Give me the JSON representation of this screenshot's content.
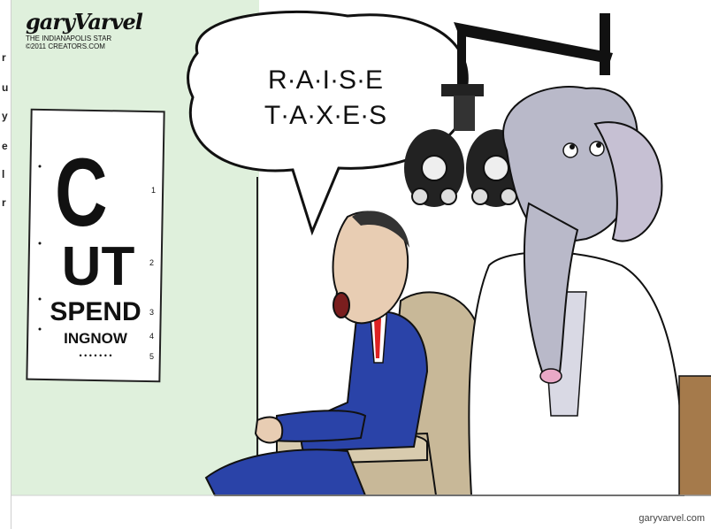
{
  "signature": {
    "name": "garyVarvel",
    "line1": "THE INDIANAPOLIS STAR",
    "line2": "©2011 CREATORS.COM"
  },
  "speech_bubble": {
    "line1": "R·A·I·S·E",
    "line2": "T·A·X·E·S"
  },
  "eye_chart": {
    "row1": "C",
    "row2": "UT",
    "row3": "SPEND",
    "row4": "INGNOW",
    "row5": "• • • • • • •",
    "row_numbers": [
      "1",
      "2",
      "3",
      "4",
      "5"
    ]
  },
  "credit": "garyvarvel.com",
  "left_strip_chars": [
    "r",
    "u",
    "y",
    "e",
    "l",
    "r"
  ],
  "colors": {
    "wall": "#dff0dc",
    "suit": "#2a43a8",
    "elephant": "#b9b9c9",
    "chair": "#c8b898",
    "coat": "#ffffff"
  }
}
